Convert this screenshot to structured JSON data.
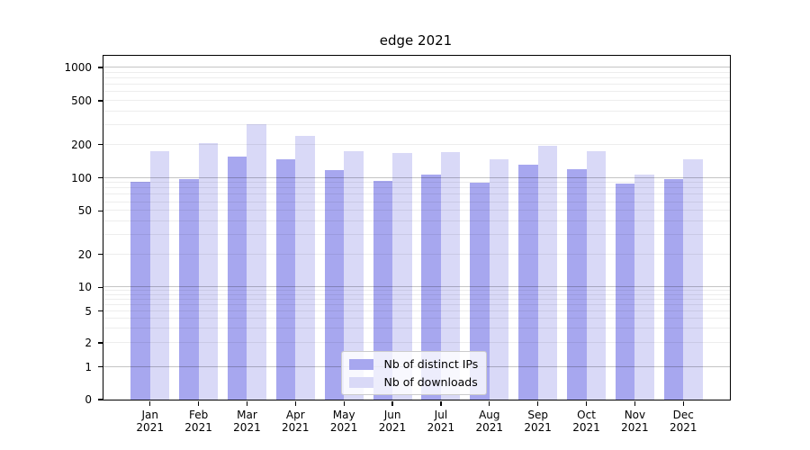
{
  "title": "edge 2021",
  "chart_data": {
    "type": "bar",
    "title": "edge 2021",
    "xlabel": "",
    "ylabel": "",
    "yscale": "symlog",
    "ylim": [
      0,
      1280
    ],
    "grid": true,
    "legend_position": "lower center",
    "y_ticks": [
      "0",
      "1",
      "2",
      "5",
      "10",
      "20",
      "50",
      "100",
      "200",
      "500",
      "1000"
    ],
    "categories": [
      "Jan 2021",
      "Feb 2021",
      "Mar 2021",
      "Apr 2021",
      "May 2021",
      "Jun 2021",
      "Jul 2021",
      "Aug 2021",
      "Sep 2021",
      "Oct 2021",
      "Nov 2021",
      "Dec 2021"
    ],
    "series": [
      {
        "name": "Nb of distinct IPs",
        "key": "ips",
        "color": "#a7a7ef",
        "values": [
          92,
          98,
          157,
          146,
          117,
          93,
          107,
          90,
          131,
          120,
          88,
          98
        ]
      },
      {
        "name": "Nb of downloads",
        "key": "downloads",
        "color": "#d9d9f7",
        "values": [
          175,
          206,
          308,
          239,
          174,
          167,
          171,
          148,
          197,
          175,
          108,
          146
        ]
      }
    ]
  }
}
